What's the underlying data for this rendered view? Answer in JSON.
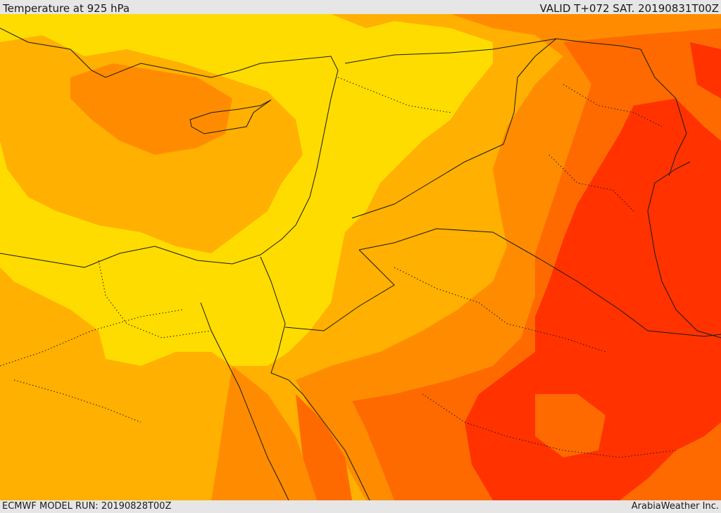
{
  "header": {
    "title": "Temperature at 925 hPa",
    "valid": "VALID T+072 SAT. 20190831T00Z"
  },
  "footer": {
    "model_run": "ECMWF MODEL RUN: 20190828T00Z",
    "credit": "ArabiaWeather Inc."
  },
  "map": {
    "variable": "temperature",
    "level": "925 hPa",
    "colors": {
      "background": "#e6e6e6",
      "band_yellow": "#ffdc00",
      "band_light_orange": "#ffb000",
      "band_orange": "#ff8c00",
      "band_dark_orange": "#ff6a00",
      "band_red": "#ff3200",
      "boundary": "#1a1a1a"
    }
  }
}
